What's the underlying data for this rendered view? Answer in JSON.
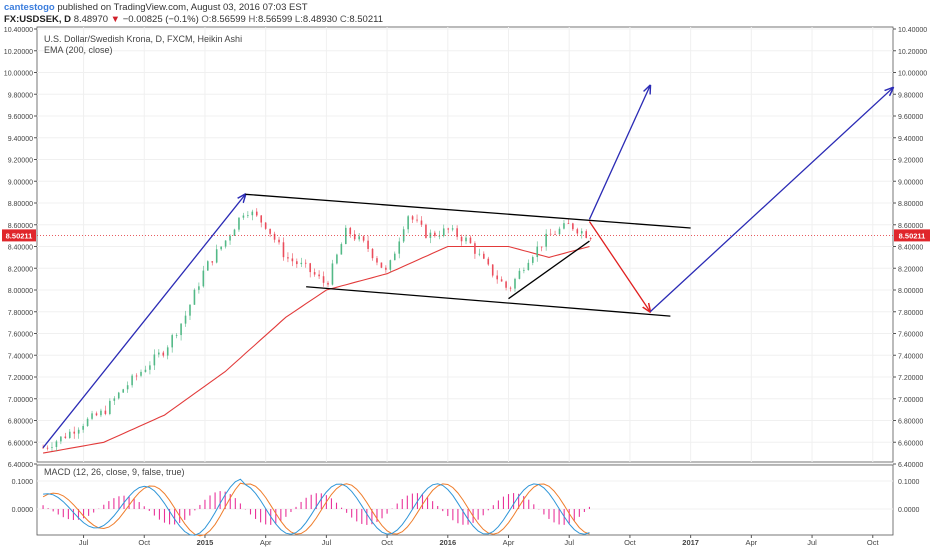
{
  "header": {
    "user": "cantestogo",
    "published": "published on TradingView.com, August 03, 2016 07:03 EST",
    "symbol": "FX:USDSEK, D",
    "last": "8.48970",
    "change_arrow": "▼",
    "change": "−0.00825 (−0.1%)",
    "o_label": "O:",
    "o": "8.56599",
    "h_label": "H:",
    "h": "8.56599",
    "l_label": "L:",
    "l": "8.48930",
    "c_label": "C:",
    "c": "8.50211"
  },
  "legend": {
    "title": "U.S. Dollar/Swedish Krona, D, FXCM, Heikin Ashi",
    "ema": "EMA (200, close)"
  },
  "macd_legend": "MACD (12, 26, close, 9, false, true)",
  "colors": {
    "up": "#53b987",
    "down": "#eb4d5c",
    "ema": "#e23a3a",
    "trend": "#2b2bb5",
    "channel": "#000000",
    "arrow": "#e02020",
    "macd": "#2f96d8",
    "signal": "#ef7d2b",
    "hist": "#e9339a",
    "price_tag": "#e0262b"
  },
  "chart_data": [
    {
      "type": "candlestick",
      "title": "U.S. Dollar/Swedish Krona, D, FXCM, Heikin Ashi",
      "ylim": [
        6.4,
        10.4
      ],
      "y_ticks": [
        "10.40000",
        "10.20000",
        "10.00000",
        "9.80000",
        "9.60000",
        "9.40000",
        "9.20000",
        "9.00000",
        "8.80000",
        "8.60000",
        "8.40000",
        "8.20000",
        "8.00000",
        "7.80000",
        "7.60000",
        "7.40000",
        "7.20000",
        "7.00000",
        "6.80000",
        "6.60000",
        "6.40000"
      ],
      "x_ticks": [
        "Jul",
        "Oct",
        "2015",
        "Apr",
        "Jul",
        "Oct",
        "2016",
        "Apr",
        "Jul",
        "Oct",
        "2017",
        "Apr",
        "Jul",
        "Oct"
      ],
      "last_price": "8.50211",
      "price_path": [
        [
          "2014-05",
          6.55
        ],
        [
          "2014-06",
          6.65
        ],
        [
          "2014-07",
          6.78
        ],
        [
          "2014-08",
          6.88
        ],
        [
          "2014-09",
          7.1
        ],
        [
          "2014-10",
          7.28
        ],
        [
          "2014-11",
          7.45
        ],
        [
          "2014-12",
          7.75
        ],
        [
          "2015-01",
          8.2
        ],
        [
          "2015-02",
          8.45
        ],
        [
          "2015-03",
          8.75
        ],
        [
          "2015-04",
          8.6
        ],
        [
          "2015-05",
          8.3
        ],
        [
          "2015-06",
          8.2
        ],
        [
          "2015-07",
          8.05
        ],
        [
          "2015-08",
          8.55
        ],
        [
          "2015-09",
          8.4
        ],
        [
          "2015-10",
          8.15
        ],
        [
          "2015-11",
          8.7
        ],
        [
          "2015-12",
          8.5
        ],
        [
          "2016-01",
          8.55
        ],
        [
          "2016-02",
          8.45
        ],
        [
          "2016-03",
          8.2
        ],
        [
          "2016-04",
          8.0
        ],
        [
          "2016-05",
          8.3
        ],
        [
          "2016-06",
          8.5
        ],
        [
          "2016-07",
          8.6
        ],
        [
          "2016-08",
          8.5
        ]
      ],
      "ema200": [
        [
          "2014-05",
          6.5
        ],
        [
          "2014-08",
          6.6
        ],
        [
          "2014-11",
          6.85
        ],
        [
          "2015-02",
          7.25
        ],
        [
          "2015-05",
          7.75
        ],
        [
          "2015-07",
          8.0
        ],
        [
          "2015-10",
          8.15
        ],
        [
          "2016-01",
          8.4
        ],
        [
          "2016-04",
          8.4
        ],
        [
          "2016-06",
          8.3
        ],
        [
          "2016-08",
          8.4
        ]
      ],
      "drawings": {
        "trend_up": [
          [
            "2014-05",
            6.55
          ],
          [
            "2015-03",
            8.88
          ]
        ],
        "channel_top": [
          [
            "2015-03",
            8.88
          ],
          [
            "2017-01",
            8.57
          ]
        ],
        "channel_bottom": [
          [
            "2015-06",
            8.03
          ],
          [
            "2016-12",
            7.76
          ]
        ],
        "support": [
          [
            "2016-04",
            7.92
          ],
          [
            "2016-08",
            8.45
          ]
        ],
        "projection_up_1": [
          [
            "2016-08",
            8.65
          ],
          [
            "2016-11",
            9.88
          ]
        ],
        "projection_down": [
          [
            "2016-08",
            8.63
          ],
          [
            "2016-11",
            7.8
          ]
        ],
        "projection_up_2": [
          [
            "2016-11",
            7.8
          ],
          [
            "2017-11",
            9.86
          ]
        ]
      }
    },
    {
      "type": "line",
      "title": "MACD (12, 26, close, 9, false, true)",
      "y_ticks": [
        "0.1000",
        "0.0000"
      ]
    }
  ]
}
